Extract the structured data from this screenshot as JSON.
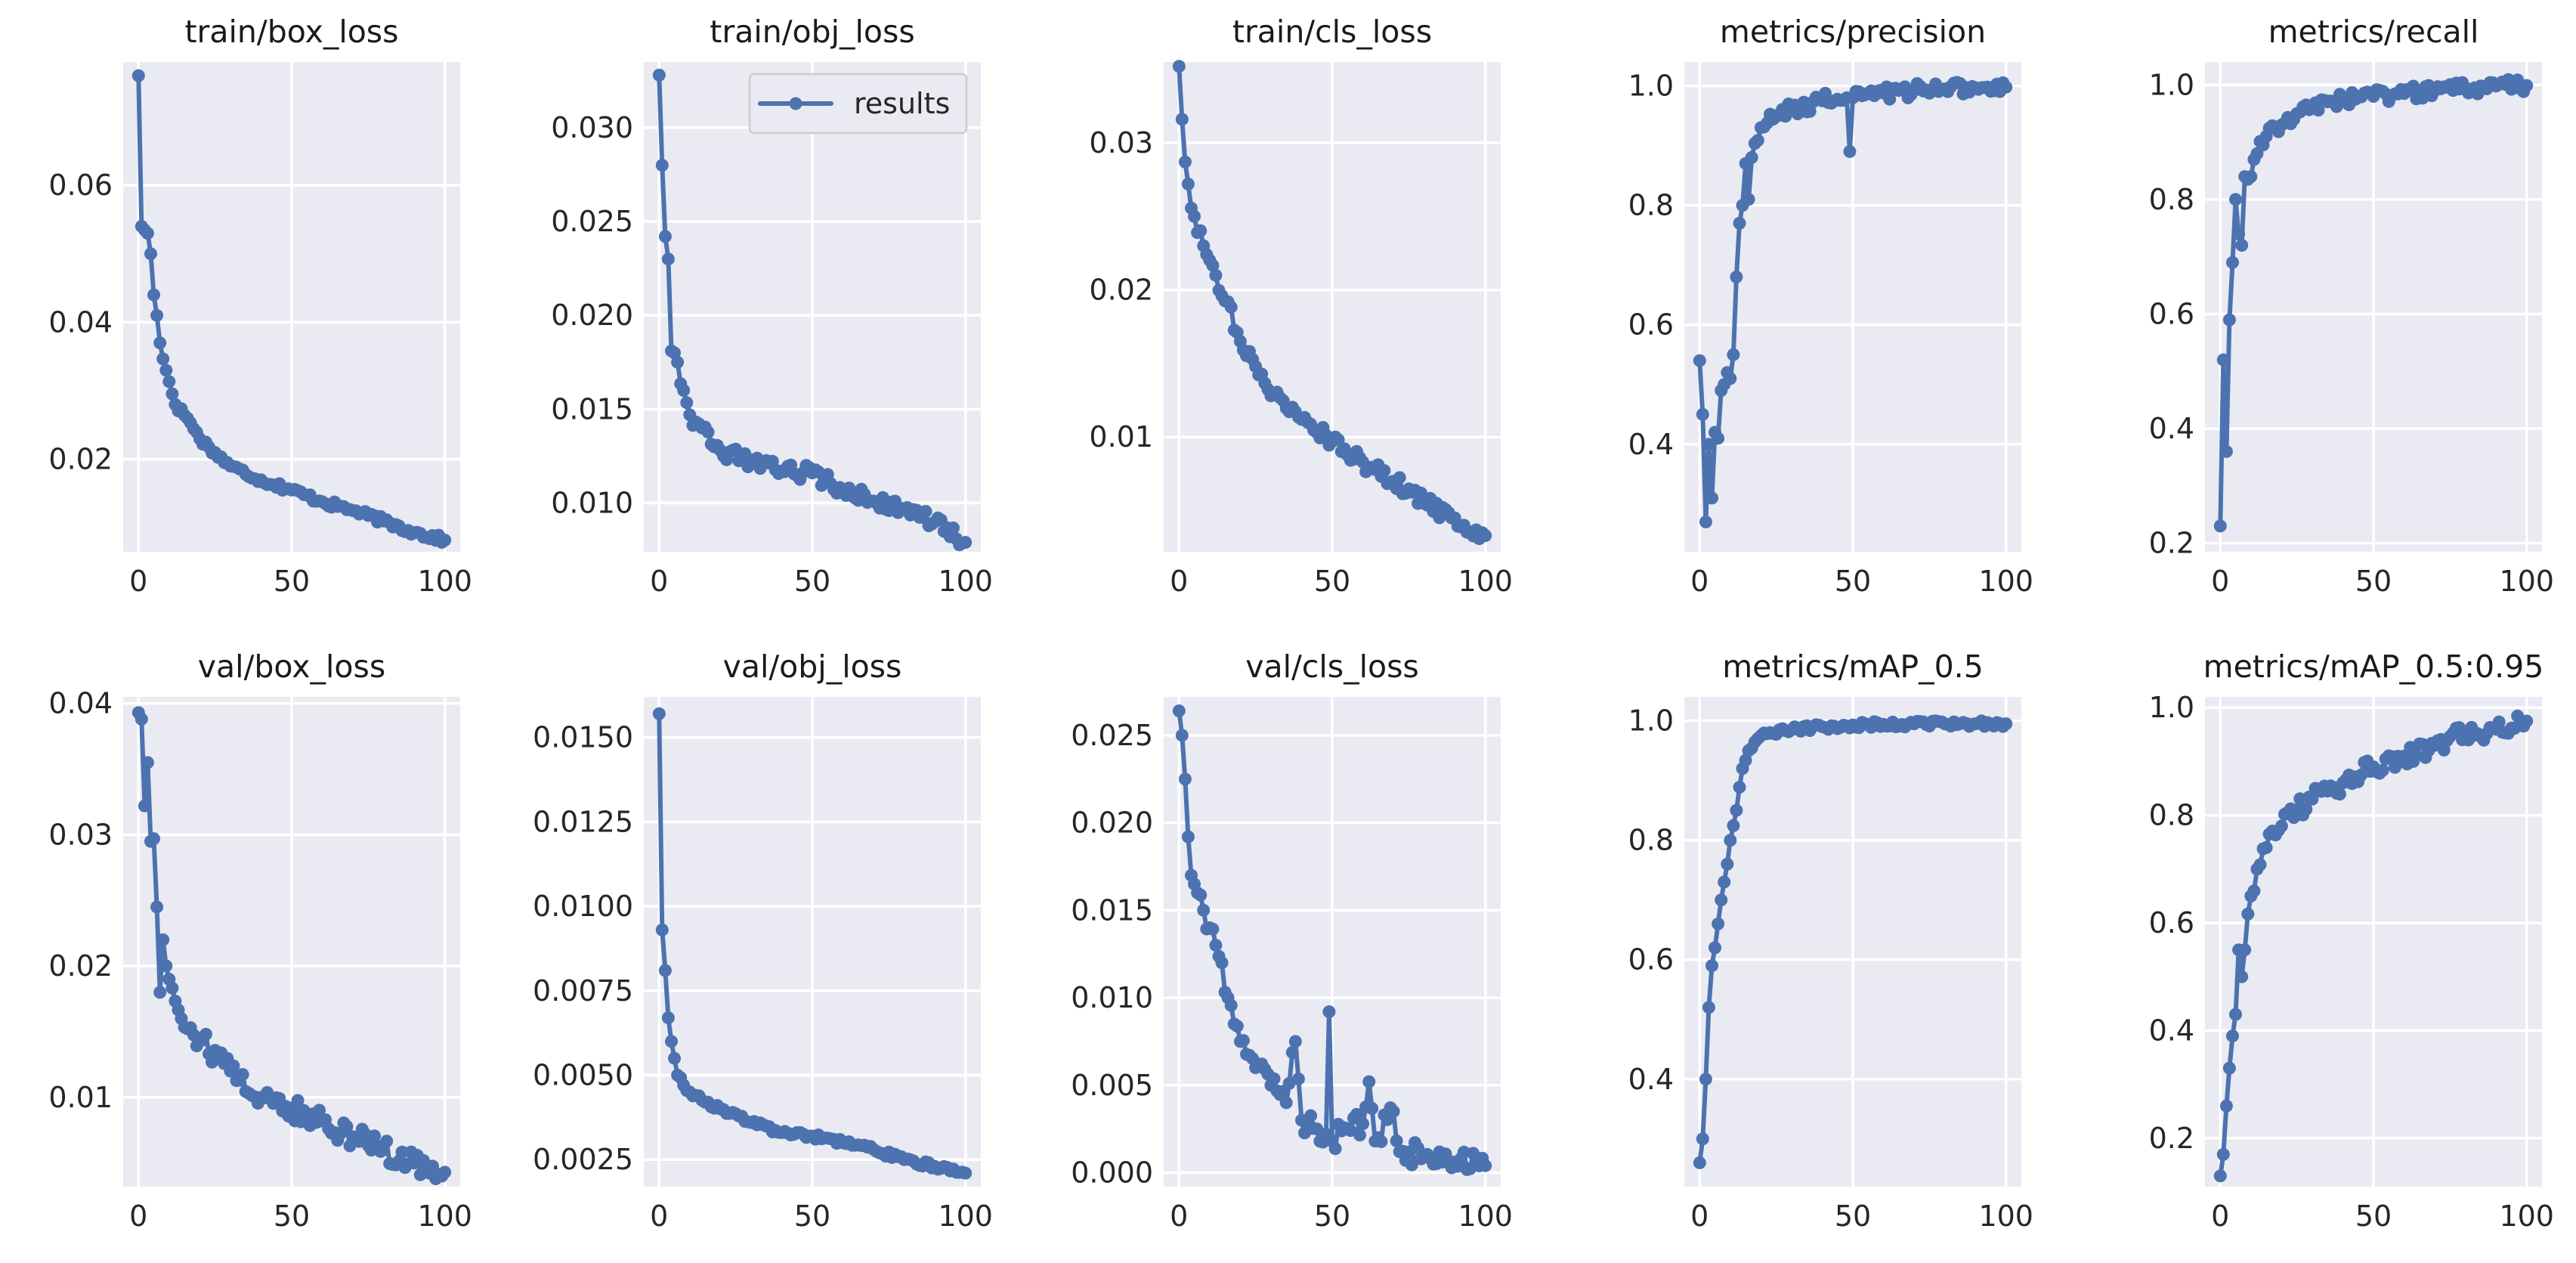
{
  "chart_data": {
    "type": "line",
    "layout": "2x5 subplots",
    "legend": {
      "label": "results",
      "location": "upper right of train/obj_loss"
    },
    "series_color": "#4c72b0",
    "panel_background": "#eaeaf2",
    "x_ticks": [
      0,
      50,
      100
    ],
    "x_tick_labels": [
      "0",
      "50",
      "100"
    ],
    "panels": [
      {
        "id": "train-box-loss",
        "title": "train/box_loss",
        "ylim": [
          0.0065,
          0.078
        ],
        "yticks": [
          0.02,
          0.04,
          0.06
        ],
        "ytick_labels": [
          "0.02",
          "0.04",
          "0.06"
        ],
        "keypoints": [
          [
            0,
            0.076
          ],
          [
            1,
            0.054
          ],
          [
            3,
            0.053
          ],
          [
            4,
            0.05
          ],
          [
            5,
            0.044
          ],
          [
            6,
            0.041
          ],
          [
            7,
            0.037
          ],
          [
            9,
            0.033
          ],
          [
            12,
            0.028
          ],
          [
            16,
            0.026
          ],
          [
            20,
            0.023
          ],
          [
            25,
            0.021
          ],
          [
            30,
            0.019
          ],
          [
            40,
            0.017
          ],
          [
            50,
            0.0155
          ],
          [
            60,
            0.0138
          ],
          [
            70,
            0.0125
          ],
          [
            80,
            0.011
          ],
          [
            90,
            0.0093
          ],
          [
            100,
            0.0082
          ]
        ],
        "noise": 0.0005
      },
      {
        "id": "train-obj-loss",
        "title": "train/obj_loss",
        "ylim": [
          0.0074,
          0.0335
        ],
        "yticks": [
          0.01,
          0.015,
          0.02,
          0.025,
          0.03
        ],
        "ytick_labels": [
          "0.010",
          "0.015",
          "0.020",
          "0.025",
          "0.030"
        ],
        "keypoints": [
          [
            0,
            0.0328
          ],
          [
            1,
            0.028
          ],
          [
            2,
            0.0242
          ],
          [
            3,
            0.023
          ],
          [
            4,
            0.0181
          ],
          [
            5,
            0.018
          ],
          [
            6,
            0.0175
          ],
          [
            8,
            0.016
          ],
          [
            10,
            0.0147
          ],
          [
            14,
            0.014
          ],
          [
            20,
            0.0128
          ],
          [
            30,
            0.0122
          ],
          [
            40,
            0.0117
          ],
          [
            50,
            0.0116
          ],
          [
            60,
            0.0107
          ],
          [
            70,
            0.0101
          ],
          [
            80,
            0.0097
          ],
          [
            90,
            0.009
          ],
          [
            100,
            0.0079
          ]
        ],
        "noise": 0.0004
      },
      {
        "id": "train-cls-loss",
        "title": "train/cls_loss",
        "ylim": [
          0.0022,
          0.0355
        ],
        "yticks": [
          0.01,
          0.02,
          0.03
        ],
        "ytick_labels": [
          "0.01",
          "0.02",
          "0.03"
        ],
        "keypoints": [
          [
            0,
            0.0352
          ],
          [
            1,
            0.0316
          ],
          [
            2,
            0.0287
          ],
          [
            3,
            0.0272
          ],
          [
            5,
            0.025
          ],
          [
            8,
            0.023
          ],
          [
            12,
            0.021
          ],
          [
            16,
            0.0192
          ],
          [
            20,
            0.0165
          ],
          [
            25,
            0.0148
          ],
          [
            30,
            0.0128
          ],
          [
            40,
            0.0112
          ],
          [
            50,
            0.0097
          ],
          [
            60,
            0.0083
          ],
          [
            70,
            0.007
          ],
          [
            80,
            0.0055
          ],
          [
            90,
            0.0045
          ],
          [
            100,
            0.0033
          ]
        ],
        "noise": 0.0006
      },
      {
        "id": "metrics-precision",
        "title": "metrics/precision",
        "ylim": [
          0.22,
          1.04
        ],
        "yticks": [
          0.4,
          0.6,
          0.8,
          1.0
        ],
        "ytick_labels": [
          "0.4",
          "0.6",
          "0.8",
          "1.0"
        ],
        "keypoints": [
          [
            0,
            0.54
          ],
          [
            1,
            0.45
          ],
          [
            2,
            0.27
          ],
          [
            3,
            0.4
          ],
          [
            4,
            0.31
          ],
          [
            5,
            0.42
          ],
          [
            6,
            0.41
          ],
          [
            7,
            0.49
          ],
          [
            8,
            0.5
          ],
          [
            9,
            0.52
          ],
          [
            10,
            0.51
          ],
          [
            11,
            0.55
          ],
          [
            12,
            0.68
          ],
          [
            13,
            0.77
          ],
          [
            14,
            0.8
          ],
          [
            15,
            0.87
          ],
          [
            16,
            0.81
          ],
          [
            17,
            0.88
          ],
          [
            20,
            0.93
          ],
          [
            25,
            0.95
          ],
          [
            30,
            0.96
          ],
          [
            40,
            0.975
          ],
          [
            48,
            0.98
          ],
          [
            49,
            0.89
          ],
          [
            50,
            0.98
          ],
          [
            60,
            0.988
          ],
          [
            70,
            0.992
          ],
          [
            80,
            0.995
          ],
          [
            90,
            0.997
          ],
          [
            100,
            0.998
          ]
        ],
        "noise": 0.012
      },
      {
        "id": "metrics-recall",
        "title": "metrics/recall",
        "ylim": [
          0.185,
          1.04
        ],
        "yticks": [
          0.2,
          0.4,
          0.6,
          0.8,
          1.0
        ],
        "ytick_labels": [
          "0.2",
          "0.4",
          "0.6",
          "0.8",
          "1.0"
        ],
        "keypoints": [
          [
            0,
            0.23
          ],
          [
            1,
            0.52
          ],
          [
            2,
            0.36
          ],
          [
            3,
            0.59
          ],
          [
            4,
            0.69
          ],
          [
            5,
            0.8
          ],
          [
            6,
            0.74
          ],
          [
            7,
            0.72
          ],
          [
            8,
            0.84
          ],
          [
            10,
            0.84
          ],
          [
            12,
            0.88
          ],
          [
            15,
            0.91
          ],
          [
            20,
            0.93
          ],
          [
            25,
            0.95
          ],
          [
            30,
            0.96
          ],
          [
            40,
            0.975
          ],
          [
            50,
            0.98
          ],
          [
            60,
            0.985
          ],
          [
            70,
            0.99
          ],
          [
            80,
            0.995
          ],
          [
            90,
            0.998
          ],
          [
            100,
            0.999
          ]
        ],
        "noise": 0.012
      },
      {
        "id": "val-box-loss",
        "title": "val/box_loss",
        "ylim": [
          0.0032,
          0.0405
        ],
        "yticks": [
          0.01,
          0.02,
          0.03,
          0.04
        ],
        "ytick_labels": [
          "0.01",
          "0.02",
          "0.03",
          "0.04"
        ],
        "keypoints": [
          [
            0,
            0.0393
          ],
          [
            1,
            0.0388
          ],
          [
            2,
            0.0322
          ],
          [
            3,
            0.0355
          ],
          [
            4,
            0.0295
          ],
          [
            5,
            0.0297
          ],
          [
            6,
            0.0245
          ],
          [
            7,
            0.018
          ],
          [
            8,
            0.022
          ],
          [
            10,
            0.019
          ],
          [
            14,
            0.016
          ],
          [
            20,
            0.0145
          ],
          [
            30,
            0.012
          ],
          [
            40,
            0.01
          ],
          [
            50,
            0.0092
          ],
          [
            60,
            0.0082
          ],
          [
            70,
            0.007
          ],
          [
            80,
            0.006
          ],
          [
            90,
            0.005
          ],
          [
            100,
            0.0043
          ]
        ],
        "noise": 0.0009
      },
      {
        "id": "val-obj-loss",
        "title": "val/obj_loss",
        "ylim": [
          0.0017,
          0.0162
        ],
        "yticks": [
          0.0025,
          0.005,
          0.0075,
          0.01,
          0.0125,
          0.015
        ],
        "ytick_labels": [
          "0.0025",
          "0.0050",
          "0.0075",
          "0.0100",
          "0.0125",
          "0.0150"
        ],
        "keypoints": [
          [
            0,
            0.0157
          ],
          [
            1,
            0.0093
          ],
          [
            2,
            0.0081
          ],
          [
            3,
            0.0067
          ],
          [
            4,
            0.006
          ],
          [
            5,
            0.0055
          ],
          [
            6,
            0.005
          ],
          [
            8,
            0.0047
          ],
          [
            10,
            0.0045
          ],
          [
            15,
            0.0042
          ],
          [
            20,
            0.004
          ],
          [
            30,
            0.0036
          ],
          [
            40,
            0.0033
          ],
          [
            50,
            0.0032
          ],
          [
            60,
            0.003
          ],
          [
            70,
            0.0028
          ],
          [
            80,
            0.0025
          ],
          [
            90,
            0.0023
          ],
          [
            100,
            0.0021
          ]
        ],
        "noise": 8e-05
      },
      {
        "id": "val-cls-loss",
        "title": "val/cls_loss",
        "ylim": [
          -0.0008,
          0.0272
        ],
        "yticks": [
          0.0,
          0.005,
          0.01,
          0.015,
          0.02,
          0.025
        ],
        "ytick_labels": [
          "0.000",
          "0.005",
          "0.010",
          "0.015",
          "0.020",
          "0.025"
        ],
        "keypoints": [
          [
            0,
            0.0264
          ],
          [
            1,
            0.025
          ],
          [
            2,
            0.0225
          ],
          [
            3,
            0.0192
          ],
          [
            4,
            0.017
          ],
          [
            5,
            0.0165
          ],
          [
            6,
            0.016
          ],
          [
            8,
            0.015
          ],
          [
            10,
            0.014
          ],
          [
            12,
            0.013
          ],
          [
            14,
            0.012
          ],
          [
            16,
            0.01
          ],
          [
            18,
            0.0085
          ],
          [
            20,
            0.0075
          ],
          [
            25,
            0.006
          ],
          [
            30,
            0.005
          ],
          [
            35,
            0.004
          ],
          [
            38,
            0.0075
          ],
          [
            40,
            0.003
          ],
          [
            45,
            0.0025
          ],
          [
            48,
            0.0022
          ],
          [
            49,
            0.0092
          ],
          [
            50,
            0.0018
          ],
          [
            55,
            0.0025
          ],
          [
            60,
            0.0028
          ],
          [
            62,
            0.0052
          ],
          [
            64,
            0.0018
          ],
          [
            70,
            0.0035
          ],
          [
            72,
            0.0012
          ],
          [
            80,
            0.001
          ],
          [
            90,
            0.0006
          ],
          [
            100,
            0.0004
          ]
        ],
        "noise": 0.0007
      },
      {
        "id": "metrics-map-05",
        "title": "metrics/mAP_0.5",
        "ylim": [
          0.22,
          1.04
        ],
        "yticks": [
          0.4,
          0.6,
          0.8,
          1.0
        ],
        "ytick_labels": [
          "0.4",
          "0.6",
          "0.8",
          "1.0"
        ],
        "keypoints": [
          [
            0,
            0.26
          ],
          [
            1,
            0.3
          ],
          [
            2,
            0.4
          ],
          [
            3,
            0.52
          ],
          [
            4,
            0.59
          ],
          [
            5,
            0.62
          ],
          [
            6,
            0.66
          ],
          [
            7,
            0.7
          ],
          [
            8,
            0.73
          ],
          [
            9,
            0.76
          ],
          [
            10,
            0.8
          ],
          [
            12,
            0.85
          ],
          [
            14,
            0.92
          ],
          [
            16,
            0.95
          ],
          [
            20,
            0.975
          ],
          [
            30,
            0.985
          ],
          [
            40,
            0.99
          ],
          [
            50,
            0.993
          ],
          [
            60,
            0.994
          ],
          [
            70,
            0.995
          ],
          [
            80,
            0.995
          ],
          [
            90,
            0.995
          ],
          [
            100,
            0.995
          ]
        ],
        "noise": 0.005
      },
      {
        "id": "metrics-map-05-095",
        "title": "metrics/mAP_0.5:0.95",
        "ylim": [
          0.11,
          1.02
        ],
        "yticks": [
          0.2,
          0.4,
          0.6,
          0.8,
          1.0
        ],
        "ytick_labels": [
          "0.2",
          "0.4",
          "0.6",
          "0.8",
          "1.0"
        ],
        "keypoints": [
          [
            0,
            0.13
          ],
          [
            1,
            0.17
          ],
          [
            2,
            0.26
          ],
          [
            3,
            0.33
          ],
          [
            4,
            0.39
          ],
          [
            5,
            0.43
          ],
          [
            6,
            0.55
          ],
          [
            7,
            0.5
          ],
          [
            8,
            0.55
          ],
          [
            10,
            0.65
          ],
          [
            12,
            0.7
          ],
          [
            15,
            0.74
          ],
          [
            20,
            0.78
          ],
          [
            25,
            0.81
          ],
          [
            30,
            0.83
          ],
          [
            40,
            0.86
          ],
          [
            50,
            0.89
          ],
          [
            60,
            0.91
          ],
          [
            70,
            0.93
          ],
          [
            80,
            0.95
          ],
          [
            90,
            0.96
          ],
          [
            100,
            0.975
          ]
        ],
        "noise": 0.018
      }
    ]
  }
}
